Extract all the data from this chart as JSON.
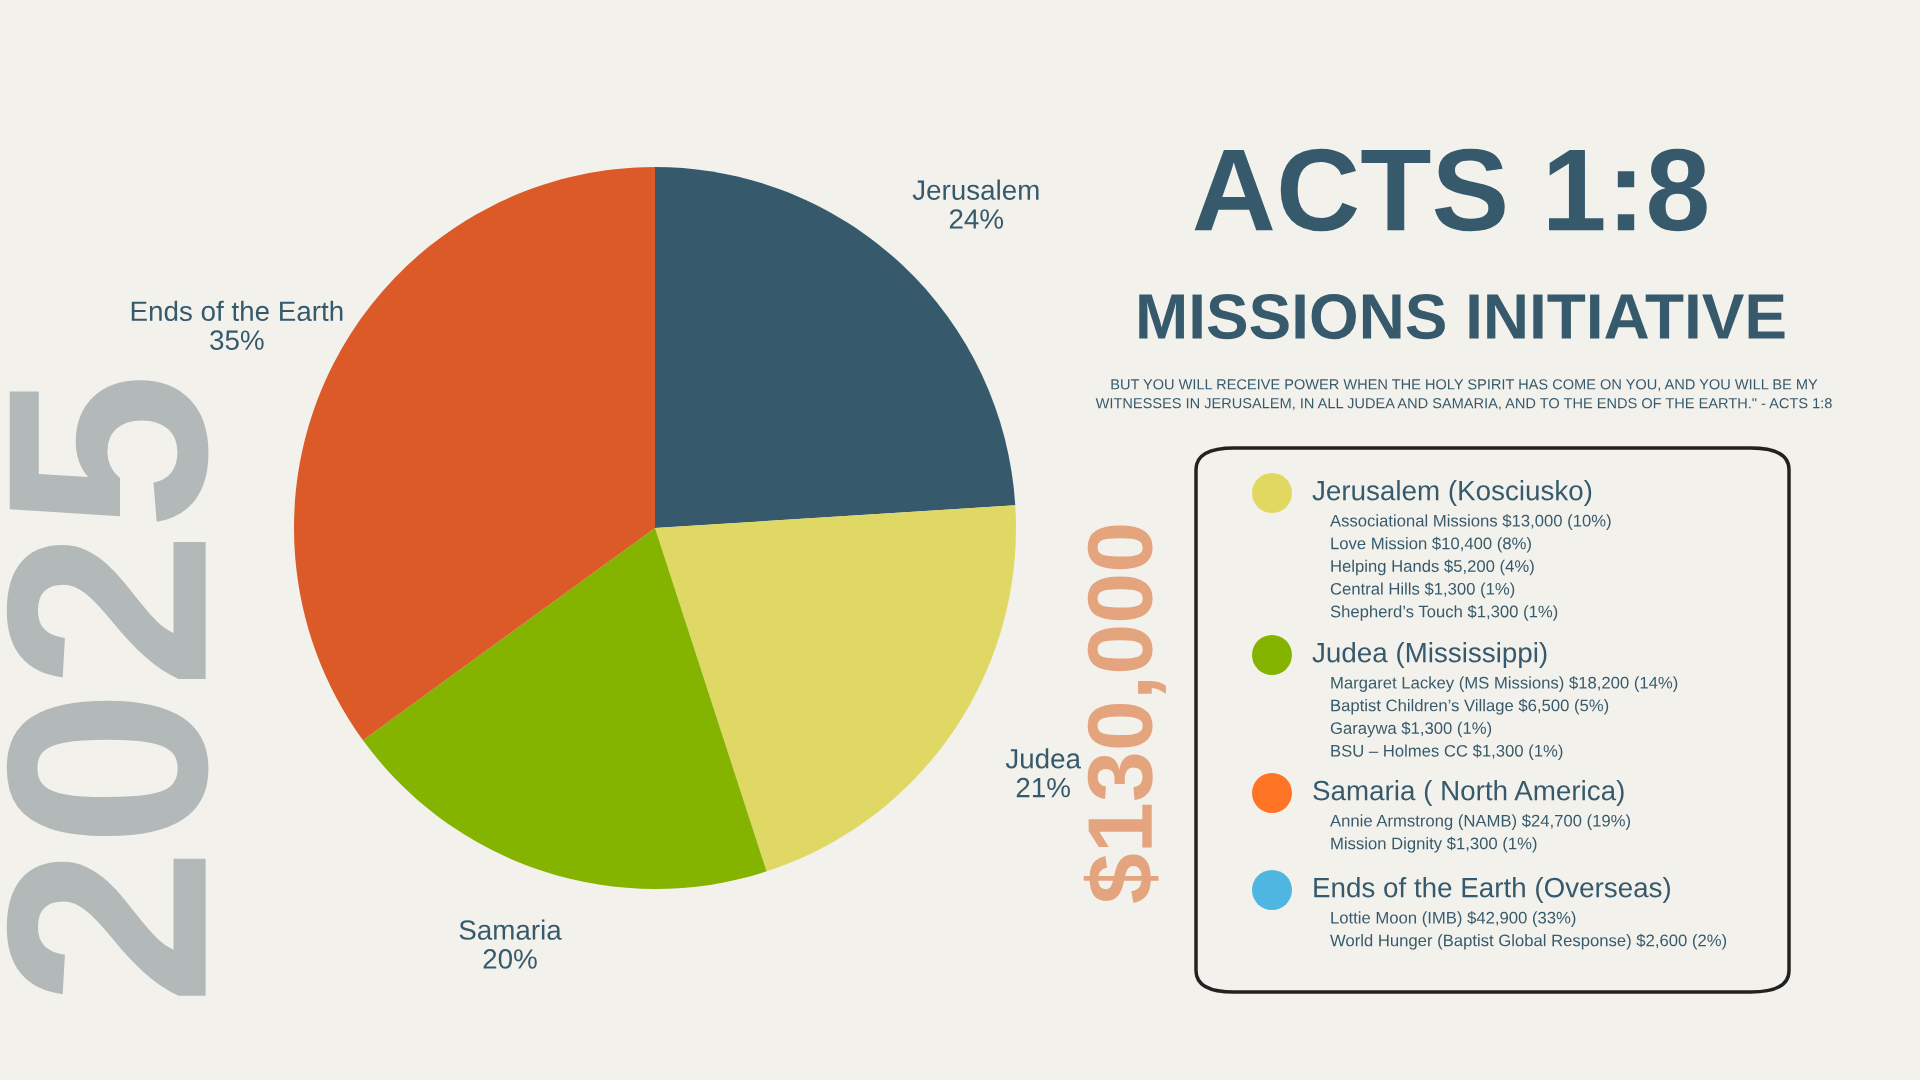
{
  "chart_data": {
    "type": "pie",
    "title": "ACTS 1:8",
    "subtitle": "MISSIONS INITIATIVE",
    "categories": [
      "Jerusalem",
      "Judea",
      "Samaria",
      "Ends of the Earth"
    ],
    "values": [
      24,
      21,
      20,
      35
    ],
    "value_labels": [
      "24%",
      "21%",
      "20%",
      "35%"
    ],
    "colors": [
      "#365a6b",
      "#e0d865",
      "#84b300",
      "#dc5a27"
    ],
    "annotations": [
      "BUT YOU WILL RECEIVE POWER WHEN THE HOLY SPIRIT HAS COME ON YOU, AND YOU WILL BE MY\nWITNESSES IN JERUSALEM, IN ALL JUDEA AND SAMARIA, AND TO THE ENDS OF THE EARTH.\" - ACTS 1:8",
      "2025",
      "$130,000",
      "Jerusalem (Kosciusko)",
      "Associational Missions $13,000 (10%)",
      "Love Mission $10,400 (8%)",
      "Helping Hands $5,200 (4%)",
      "Central Hills $1,300 (1%)",
      "Shepherd’s Touch $1,300 (1%)",
      "Judea (Mississippi)",
      "Margaret Lackey (MS Missions) $18,200 (14%)",
      "Baptist Children’s Village $6,500 (5%)",
      "Garaywa $1,300 (1%)",
      "BSU – Holmes CC $1,300 (1%)",
      "Samaria ( North America)",
      "Annie Armstrong (NAMB) $24,700 (19%)",
      "Mission Dignity $1,300 (1%)",
      "Ends of the Earth (Overseas)",
      "Lottie Moon (IMB) $42,900 (33%)",
      "World Hunger (Baptist Global Response) $2,600 (2%)"
    ]
  }
}
